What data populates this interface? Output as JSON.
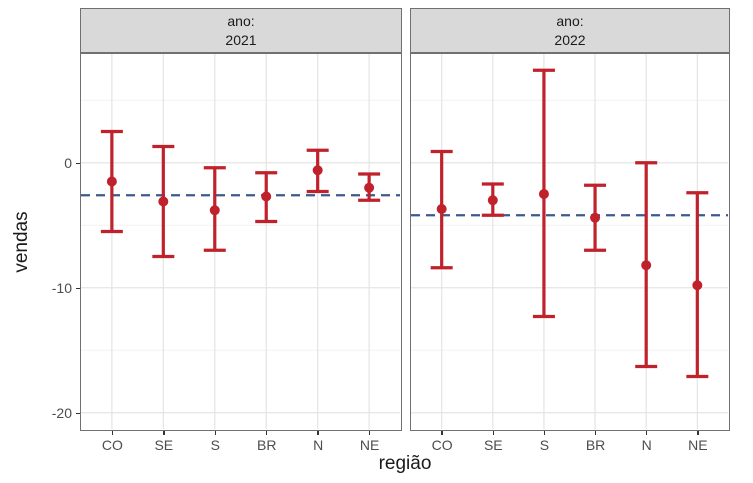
{
  "chart_data": {
    "type": "errorbar",
    "facet_variable": "ano",
    "xlabel": "região",
    "ylabel": "vendas",
    "categories": [
      "CO",
      "SE",
      "S",
      "BR",
      "N",
      "NE"
    ],
    "y_ticks": [
      {
        "value": 0,
        "label": "0"
      },
      {
        "value": -10,
        "label": "-10"
      },
      {
        "value": -20,
        "label": "-20"
      }
    ],
    "y_minor_ticks": [
      5,
      -5,
      -15
    ],
    "ylim": [
      -21.3,
      8.7
    ],
    "grid": true,
    "legend": "none",
    "facets": [
      {
        "label_prefix": "ano:",
        "label_value": "2021",
        "reference_line": -2.6,
        "points": [
          {
            "category": "CO",
            "mean": -1.5,
            "lower": -5.5,
            "upper": 2.5
          },
          {
            "category": "SE",
            "mean": -3.1,
            "lower": -7.5,
            "upper": 1.3
          },
          {
            "category": "S",
            "mean": -3.8,
            "lower": -7.0,
            "upper": -0.4
          },
          {
            "category": "BR",
            "mean": -2.7,
            "lower": -4.7,
            "upper": -0.8
          },
          {
            "category": "N",
            "mean": -0.6,
            "lower": -2.3,
            "upper": 1.0
          },
          {
            "category": "NE",
            "mean": -2.0,
            "lower": -3.0,
            "upper": -0.9
          }
        ]
      },
      {
        "label_prefix": "ano:",
        "label_value": "2022",
        "reference_line": -4.2,
        "points": [
          {
            "category": "CO",
            "mean": -3.7,
            "lower": -8.4,
            "upper": 0.9
          },
          {
            "category": "SE",
            "mean": -3.0,
            "lower": -4.2,
            "upper": -1.7
          },
          {
            "category": "S",
            "mean": -2.5,
            "lower": -12.3,
            "upper": 7.4
          },
          {
            "category": "BR",
            "mean": -4.4,
            "lower": -7.0,
            "upper": -1.8
          },
          {
            "category": "N",
            "mean": -8.2,
            "lower": -16.3,
            "upper": 0.0
          },
          {
            "category": "NE",
            "mean": -9.8,
            "lower": -17.1,
            "upper": -2.4
          }
        ]
      }
    ]
  },
  "colors": {
    "errorbar": "#C0222C",
    "reference_line": "#3A5C8C",
    "strip_bg": "#D9D9D9",
    "strip_border": "#707070",
    "panel_border": "#707070",
    "grid_major": "#E4E4E4",
    "grid_minor": "#F2F2F2",
    "tick_label": "#4D4D4D",
    "axis_title": "#1A1A1A"
  }
}
